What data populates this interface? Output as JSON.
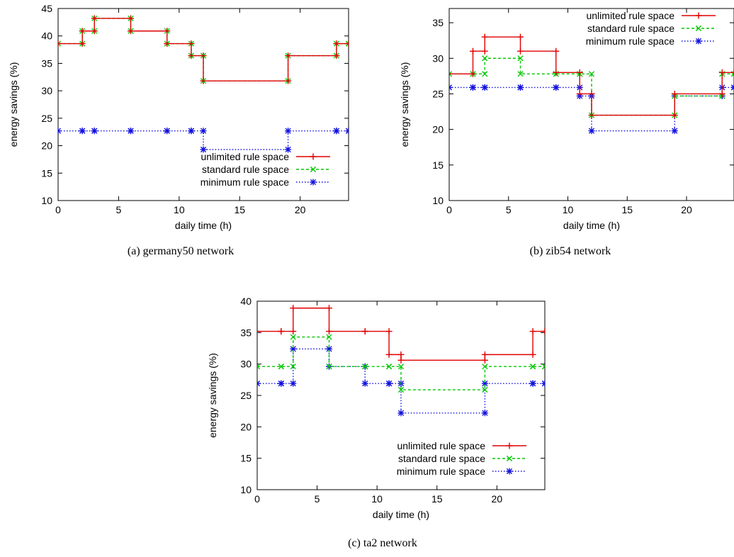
{
  "series_styles": [
    {
      "color": "#e00000",
      "dash": "",
      "marker": "plus"
    },
    {
      "color": "#00c800",
      "dash": "4,3",
      "marker": "x"
    },
    {
      "color": "#1010e0",
      "dash": "1.5,2.5",
      "marker": "star"
    }
  ],
  "chart_data": [
    {
      "type": "line",
      "caption": "(a) germany50 network",
      "xlabel": "daily time (h)",
      "ylabel": "energy savings (%)",
      "xlim": [
        0,
        24
      ],
      "ylim": [
        10,
        45
      ],
      "xticks": [
        0,
        5,
        10,
        15,
        20
      ],
      "yticks": [
        10,
        15,
        20,
        25,
        30,
        35,
        40,
        45
      ],
      "grid": false,
      "legend": "bottom-right",
      "x": [
        0,
        2,
        3,
        6,
        9,
        11,
        12,
        19,
        23,
        24
      ],
      "series": [
        {
          "name": "unlimited rule space",
          "values": [
            38.6,
            40.9,
            43.2,
            40.9,
            38.6,
            36.4,
            31.8,
            36.4,
            38.6,
            38.6
          ]
        },
        {
          "name": "standard rule space",
          "values": [
            38.6,
            40.9,
            43.2,
            40.9,
            38.6,
            36.4,
            31.8,
            36.4,
            38.6,
            38.6
          ]
        },
        {
          "name": "minimum rule space",
          "values": [
            22.7,
            22.7,
            22.7,
            22.7,
            22.7,
            22.7,
            19.3,
            22.7,
            22.7,
            22.7
          ]
        }
      ]
    },
    {
      "type": "line",
      "caption": "(b) zib54 network",
      "xlabel": "daily time (h)",
      "ylabel": "energy savings (%)",
      "xlim": [
        0,
        24
      ],
      "ylim": [
        10,
        37
      ],
      "xticks": [
        0,
        5,
        10,
        15,
        20
      ],
      "yticks": [
        10,
        15,
        20,
        25,
        30,
        35
      ],
      "grid": false,
      "legend": "top-right",
      "x": [
        0,
        2,
        3,
        6,
        9,
        11,
        12,
        19,
        23,
        24
      ],
      "series": [
        {
          "name": "unlimited rule space",
          "values": [
            27.8,
            31.0,
            33.0,
            31.0,
            28.0,
            25.0,
            22.0,
            25.0,
            28.0,
            28.0
          ]
        },
        {
          "name": "standard rule space",
          "values": [
            27.8,
            27.8,
            30.0,
            27.8,
            27.8,
            27.8,
            22.0,
            24.7,
            27.8,
            27.8
          ]
        },
        {
          "name": "minimum rule space",
          "values": [
            25.9,
            25.9,
            25.9,
            25.9,
            25.9,
            24.7,
            19.8,
            24.7,
            25.9,
            25.9
          ]
        }
      ]
    },
    {
      "type": "line",
      "caption": "(c) ta2 network",
      "xlabel": "daily time (h)",
      "ylabel": "energy savings (%)",
      "xlim": [
        0,
        24
      ],
      "ylim": [
        10,
        40
      ],
      "xticks": [
        0,
        5,
        10,
        15,
        20
      ],
      "yticks": [
        10,
        15,
        20,
        25,
        30,
        35,
        40
      ],
      "grid": false,
      "legend": "bottom-right",
      "x": [
        0,
        2,
        3,
        6,
        9,
        11,
        12,
        19,
        23,
        24
      ],
      "series": [
        {
          "name": "unlimited rule space",
          "values": [
            35.2,
            35.2,
            38.9,
            35.2,
            35.2,
            31.5,
            30.6,
            31.5,
            35.2,
            35.2
          ]
        },
        {
          "name": "standard rule space",
          "values": [
            29.6,
            29.6,
            34.3,
            29.6,
            29.6,
            29.6,
            25.9,
            29.6,
            29.6,
            29.6
          ]
        },
        {
          "name": "minimum rule space",
          "values": [
            26.9,
            26.9,
            32.4,
            29.6,
            26.9,
            26.9,
            22.2,
            26.9,
            26.9,
            26.9
          ]
        }
      ]
    }
  ]
}
